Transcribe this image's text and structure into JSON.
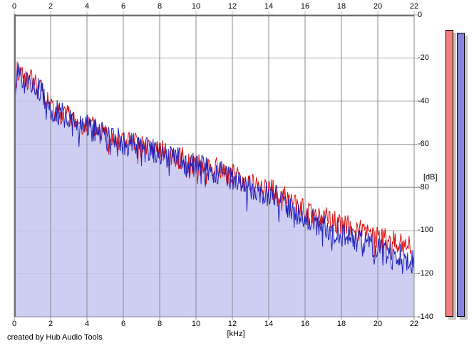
{
  "footer": {
    "credit": "created by Hub Audio Tools"
  },
  "colors": {
    "background": "#ffffff",
    "red_trace": "#dd1111",
    "blue_trace": "#2020bb",
    "area_fill": "rgba(197,197,241,0.85)",
    "grid_vertical": "#88888f",
    "grid_horizontal": "#ababab",
    "plot_border": "#6e6e76",
    "tick_top": "#b9b9c9",
    "tick_bottom": "#9797b0",
    "label_text": "#000000"
  },
  "chart_data": {
    "type": "line",
    "title": "",
    "xlabel": "[kHz]",
    "ylabel": "[dB]",
    "x_range": [
      0,
      22
    ],
    "y_range": [
      -140,
      0
    ],
    "x_ticks": [
      0,
      2,
      4,
      6,
      8,
      10,
      12,
      14,
      16,
      18,
      20,
      22
    ],
    "y_ticks": [
      0,
      -20,
      -40,
      -60,
      -80,
      -100,
      -120,
      -140
    ],
    "grid": true,
    "legend": "none",
    "points_per_khz": 25,
    "series": [
      {
        "name": "channel-1-spectrum",
        "color_key": "red_trace",
        "fill": false,
        "noise_db": 5.5,
        "dip_prob": 0.12,
        "dip_extra_db": 6,
        "seed": 41,
        "envelope_db": [
          [
            0,
            -41
          ],
          [
            0.15,
            -26
          ],
          [
            0.4,
            -27
          ],
          [
            0.8,
            -30
          ],
          [
            1.2,
            -32
          ],
          [
            1.6,
            -36
          ],
          [
            2,
            -43
          ],
          [
            2.5,
            -45
          ],
          [
            3,
            -47
          ],
          [
            4,
            -51
          ],
          [
            5,
            -55
          ],
          [
            6,
            -58
          ],
          [
            7,
            -61
          ],
          [
            8,
            -63
          ],
          [
            9,
            -66
          ],
          [
            10,
            -69
          ],
          [
            11,
            -71
          ],
          [
            12,
            -74
          ],
          [
            13,
            -78
          ],
          [
            14,
            -81
          ],
          [
            15,
            -85
          ],
          [
            16,
            -91
          ],
          [
            17,
            -94
          ],
          [
            18,
            -97
          ],
          [
            19,
            -100
          ],
          [
            20,
            -103
          ],
          [
            21,
            -105
          ],
          [
            22,
            -109
          ]
        ]
      },
      {
        "name": "channel-2-spectrum",
        "color_key": "blue_trace",
        "fill": true,
        "noise_db": 6,
        "dip_prob": 0.16,
        "dip_extra_db": 7,
        "seed": 1013,
        "envelope_db": [
          [
            0,
            -42
          ],
          [
            0.15,
            -27
          ],
          [
            0.4,
            -28
          ],
          [
            0.8,
            -31
          ],
          [
            1.2,
            -33
          ],
          [
            1.6,
            -37
          ],
          [
            2,
            -44
          ],
          [
            2.5,
            -46
          ],
          [
            3,
            -48
          ],
          [
            4,
            -52
          ],
          [
            5,
            -56
          ],
          [
            6,
            -59
          ],
          [
            7,
            -62
          ],
          [
            8,
            -64
          ],
          [
            9,
            -67
          ],
          [
            10,
            -70
          ],
          [
            11,
            -72
          ],
          [
            12,
            -76
          ],
          [
            13,
            -80
          ],
          [
            14,
            -83
          ],
          [
            15,
            -88
          ],
          [
            16,
            -94
          ],
          [
            17,
            -98
          ],
          [
            18,
            -102
          ],
          [
            19,
            -105
          ],
          [
            20,
            -108
          ],
          [
            21,
            -111
          ],
          [
            22,
            -115
          ]
        ]
      }
    ],
    "meters": {
      "items": [
        {
          "name": "channel-1-peak-meter",
          "level_db": -7,
          "fill": "#f08080"
        },
        {
          "name": "channel-2-peak-meter",
          "level_db": -8.3,
          "fill": "#8484de"
        }
      ],
      "border_color": "#000000",
      "shadow_color": "#c6c6c6"
    }
  }
}
